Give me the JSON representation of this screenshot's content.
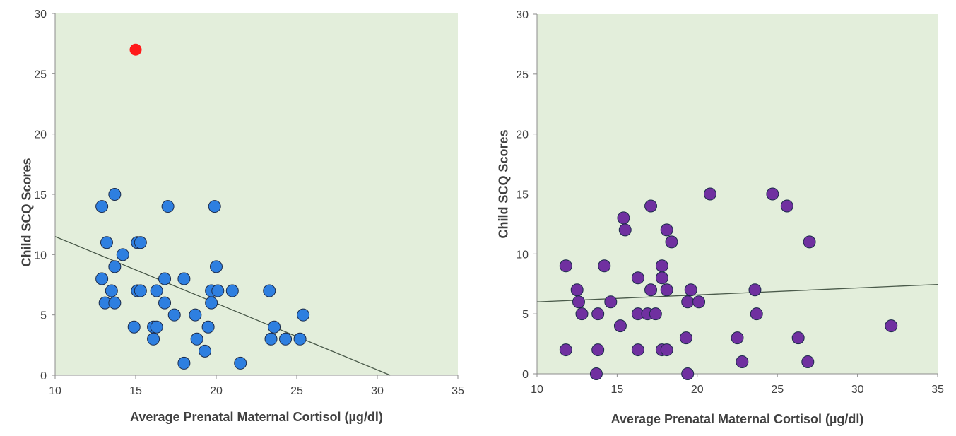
{
  "chart_data": [
    {
      "type": "scatter",
      "xlabel": "Average Prenatal Maternal Cortisol (µg/dl)",
      "ylabel": "Child SCQ Scores",
      "xlim": [
        10,
        35
      ],
      "ylim": [
        0,
        30
      ],
      "xticks": [
        10,
        15,
        20,
        25,
        30,
        35
      ],
      "yticks": [
        0,
        5,
        10,
        15,
        20,
        25,
        30
      ],
      "grid": false,
      "plot_background": "#e3eedb",
      "marker_color": "#2e7fe0",
      "outlier_color": "#ff1a1a",
      "trendline": {
        "x": [
          10,
          30.8
        ],
        "y": [
          11.5,
          0
        ]
      },
      "trendline_color": "#4a5a4a",
      "series": [
        {
          "points": [
            [
              12.9,
              14
            ],
            [
              13.7,
              15
            ],
            [
              13.2,
              11
            ],
            [
              14.2,
              10
            ],
            [
              12.9,
              8
            ],
            [
              13.7,
              9
            ],
            [
              13.5,
              7
            ],
            [
              13.1,
              6
            ],
            [
              13.7,
              6
            ],
            [
              15.1,
              11
            ],
            [
              15.3,
              11
            ],
            [
              15.1,
              7
            ],
            [
              15.3,
              7
            ],
            [
              14.9,
              4
            ],
            [
              16.1,
              4
            ],
            [
              16.3,
              4
            ],
            [
              16.1,
              3
            ],
            [
              16.3,
              7
            ],
            [
              16.8,
              8
            ],
            [
              16.8,
              6
            ],
            [
              17.0,
              14
            ],
            [
              17.4,
              5
            ],
            [
              18.0,
              8
            ],
            [
              18.0,
              1
            ],
            [
              18.7,
              5
            ],
            [
              18.8,
              3
            ],
            [
              19.3,
              2
            ],
            [
              19.5,
              4
            ],
            [
              19.7,
              6
            ],
            [
              19.7,
              7
            ],
            [
              19.9,
              14
            ],
            [
              20.0,
              9
            ],
            [
              20.1,
              7
            ],
            [
              21.0,
              7
            ],
            [
              21.5,
              1
            ],
            [
              23.3,
              7
            ],
            [
              23.4,
              3
            ],
            [
              23.6,
              4
            ],
            [
              24.3,
              3
            ],
            [
              25.2,
              3
            ],
            [
              25.4,
              5
            ]
          ]
        },
        {
          "points": [
            [
              15.0,
              27
            ]
          ],
          "outlier": true
        }
      ]
    },
    {
      "type": "scatter",
      "xlabel": "Average Prenatal Maternal Cortisol (µg/dl)",
      "ylabel": "Child SCQ Scores",
      "xlim": [
        10,
        35
      ],
      "ylim": [
        0,
        30
      ],
      "xticks": [
        10,
        15,
        20,
        25,
        30,
        35
      ],
      "yticks": [
        0,
        5,
        10,
        15,
        20,
        25,
        30
      ],
      "grid": false,
      "plot_background": "#e3eedb",
      "marker_color": "#7030a0",
      "trendline": {
        "x": [
          10,
          35
        ],
        "y": [
          6.0,
          7.45
        ]
      },
      "trendline_color": "#4a5a4a",
      "series": [
        {
          "points": [
            [
              11.8,
              9
            ],
            [
              11.8,
              2
            ],
            [
              12.5,
              7
            ],
            [
              12.6,
              6
            ],
            [
              12.8,
              5
            ],
            [
              13.8,
              5
            ],
            [
              13.8,
              2
            ],
            [
              13.7,
              0
            ],
            [
              14.2,
              9
            ],
            [
              14.6,
              6
            ],
            [
              15.2,
              4
            ],
            [
              15.4,
              13
            ],
            [
              15.5,
              12
            ],
            [
              16.3,
              8
            ],
            [
              16.3,
              5
            ],
            [
              16.3,
              2
            ],
            [
              16.9,
              5
            ],
            [
              17.1,
              7
            ],
            [
              17.1,
              14
            ],
            [
              17.4,
              5
            ],
            [
              17.8,
              8
            ],
            [
              17.8,
              9
            ],
            [
              17.8,
              2
            ],
            [
              18.1,
              2
            ],
            [
              18.1,
              7
            ],
            [
              18.1,
              12
            ],
            [
              18.4,
              11
            ],
            [
              19.3,
              3
            ],
            [
              19.4,
              6
            ],
            [
              19.4,
              0
            ],
            [
              19.6,
              7
            ],
            [
              20.1,
              6
            ],
            [
              20.8,
              15
            ],
            [
              22.5,
              3
            ],
            [
              22.8,
              1
            ],
            [
              23.6,
              7
            ],
            [
              23.7,
              5
            ],
            [
              24.7,
              15
            ],
            [
              25.6,
              14
            ],
            [
              26.3,
              3
            ],
            [
              26.9,
              1
            ],
            [
              27.0,
              11
            ],
            [
              32.1,
              4
            ]
          ]
        }
      ]
    }
  ]
}
